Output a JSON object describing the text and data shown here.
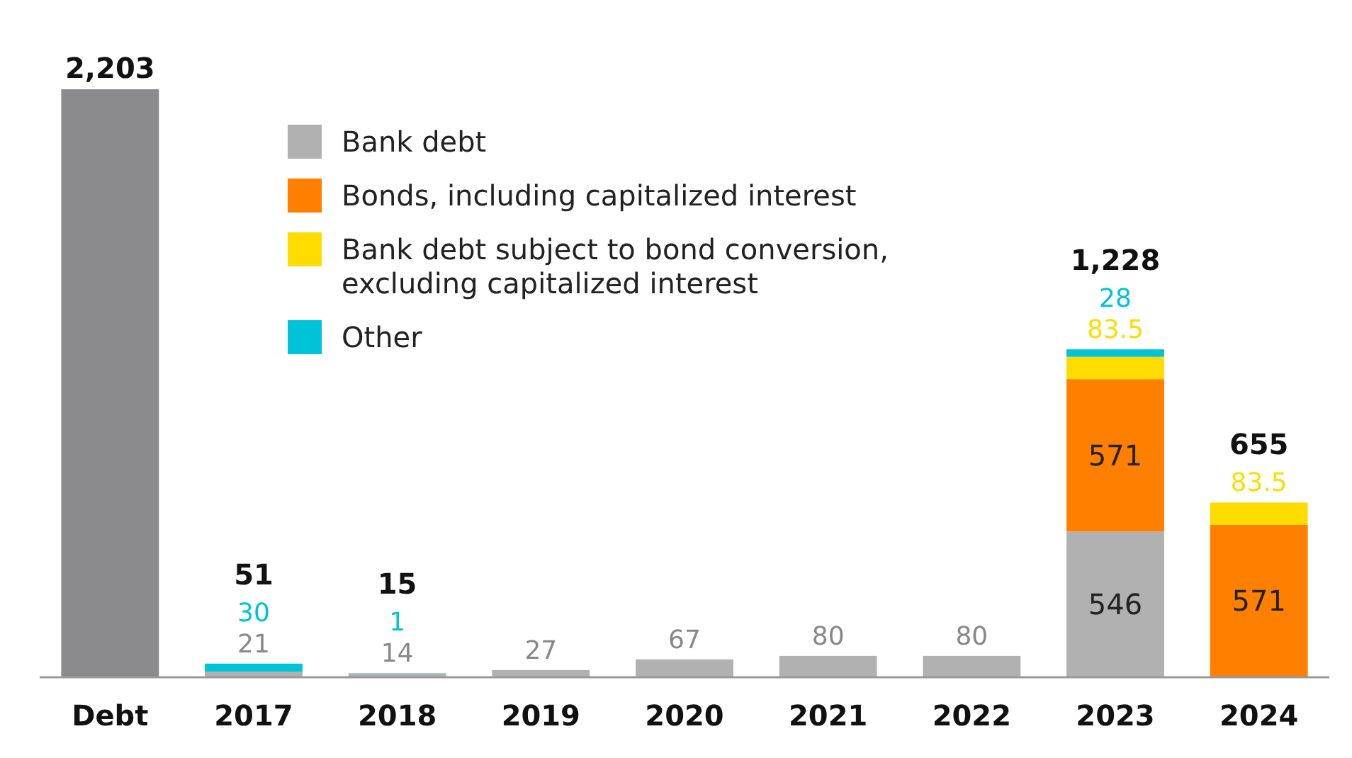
{
  "chart_data": {
    "type": "bar",
    "stacked": true,
    "legend": "top left",
    "categories": [
      "Debt",
      "2017",
      "2018",
      "2019",
      "2020",
      "2021",
      "2022",
      "2023",
      "2024"
    ],
    "series": [
      {
        "color": "#8b8b8d",
        "values": [
          2203,
          null,
          null,
          null,
          null,
          null,
          null,
          null,
          null
        ],
        "value_labels": [
          null,
          null,
          null,
          null,
          null,
          null,
          null,
          null,
          null
        ]
      },
      {
        "name": "Bank debt",
        "color": "#b1b1b1",
        "values": [
          null,
          21,
          14,
          27,
          67,
          80,
          80,
          546,
          null
        ],
        "value_labels": [
          null,
          "21",
          "14",
          "27",
          "67",
          "80",
          "80",
          "546",
          null
        ]
      },
      {
        "name": "Bonds, including capitalized interest",
        "color": "#ff7f00",
        "values": [
          null,
          null,
          null,
          null,
          null,
          null,
          null,
          571,
          571
        ],
        "value_labels": [
          null,
          null,
          null,
          null,
          null,
          null,
          null,
          "571",
          "571"
        ]
      },
      {
        "name": "Bank debt subject to bond conversion, excluding capitalized interest",
        "color": "#ffdc00",
        "values": [
          null,
          null,
          null,
          null,
          null,
          null,
          null,
          83.5,
          83.5
        ],
        "value_labels": [
          null,
          null,
          null,
          null,
          null,
          null,
          null,
          "83.5",
          "83.5"
        ]
      },
      {
        "name": "Other",
        "color": "#00c3d7",
        "values": [
          null,
          30,
          1,
          null,
          null,
          null,
          null,
          28,
          null
        ],
        "value_labels": [
          null,
          "30",
          "1",
          null,
          null,
          null,
          null,
          "28",
          null
        ]
      }
    ],
    "totals": [
      "2,203",
      "51",
      "15",
      null,
      null,
      null,
      null,
      "1,228",
      "655"
    ]
  }
}
